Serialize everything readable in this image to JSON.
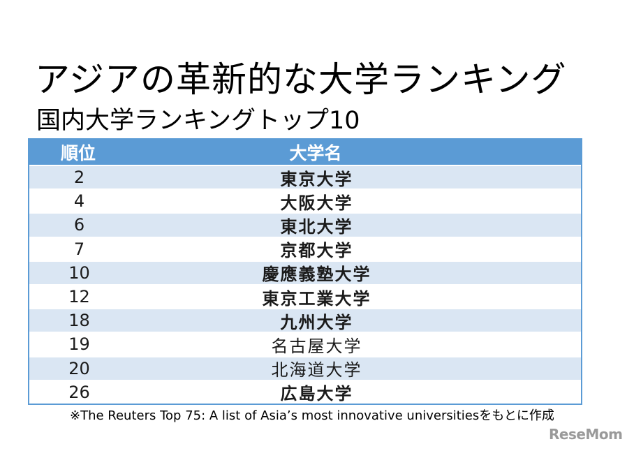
{
  "title": "アジアの革新的な大学ランキング",
  "subtitle": "国内大学ランキングトップ10",
  "table": {
    "headers": {
      "rank": "順位",
      "name": "大学名"
    },
    "rows": [
      {
        "rank": "2",
        "name": "東京大学"
      },
      {
        "rank": "4",
        "name": "大阪大学"
      },
      {
        "rank": "6",
        "name": "東北大学"
      },
      {
        "rank": "7",
        "name": "京都大学"
      },
      {
        "rank": "10",
        "name": "慶應義塾大学"
      },
      {
        "rank": "12",
        "name": "東京工業大学"
      },
      {
        "rank": "18",
        "name": "九州大学"
      },
      {
        "rank": "19",
        "name": "名古屋大学"
      },
      {
        "rank": "20",
        "name": "北海道大学"
      },
      {
        "rank": "26",
        "name": "広島大学"
      }
    ]
  },
  "footnote": "※The Reuters Top 75: A list of Asia’s most innovative universitiesをもとに作成",
  "logo": "ReseMom",
  "colors": {
    "header_bg": "#5b9bd5",
    "row_shade": "#dae6f3"
  }
}
